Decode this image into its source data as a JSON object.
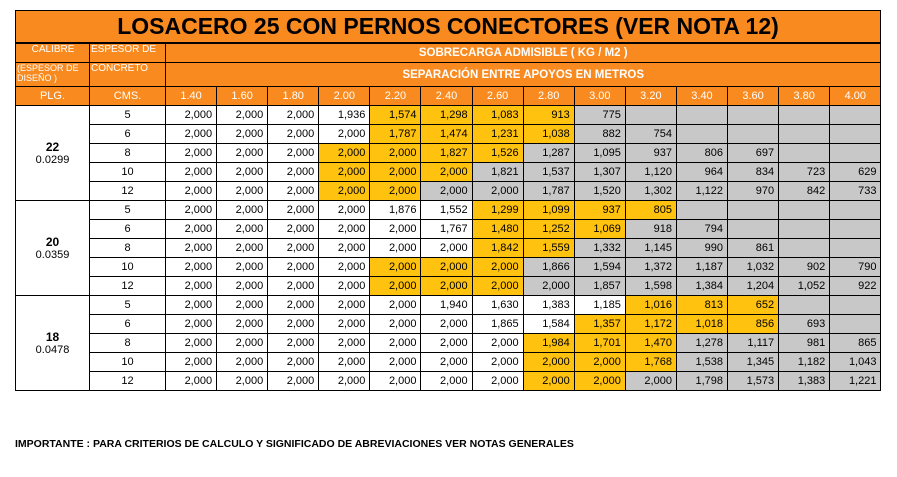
{
  "title": "LOSACERO 25  CON PERNOS CONECTORES (VER NOTA 12)",
  "header": {
    "calibre": "CALIBRE",
    "espesor_diseno": "(ESPESOR   DE DISEÑO )",
    "espesor_concreto_1": "ESPESOR  DE",
    "espesor_concreto_2": "CONCRETO",
    "sobrecarga": "SOBRECARGA ADMISIBLE  ( KG / M2 )",
    "separacion": "SEPARACIÓN ENTRE APOYOS EN METROS",
    "plg": "PLG.",
    "cms": "CMS.",
    "spans": [
      "1.40",
      "1.60",
      "1.80",
      "2.00",
      "2.20",
      "2.40",
      "2.60",
      "2.80",
      "3.00",
      "3.20",
      "3.40",
      "3.60",
      "3.80",
      "4.00"
    ]
  },
  "groups": [
    {
      "gauge": "22",
      "thickness": "0.0299",
      "rows": [
        {
          "cms": "5",
          "values": [
            "2,000",
            "2,000",
            "2,000",
            "1,936",
            "1,574",
            "1,298",
            "1,083",
            "913",
            "775",
            "",
            "",
            "",
            "",
            ""
          ],
          "fill": "wwwwyyyysssss s"
        },
        {
          "cms": "6",
          "values": [
            "2,000",
            "2,000",
            "2,000",
            "2,000",
            "1,787",
            "1,474",
            "1,231",
            "1,038",
            "882",
            "754",
            "",
            "",
            "",
            ""
          ]
        },
        {
          "cms": "8",
          "values": [
            "2,000",
            "2,000",
            "2,000",
            "2,000",
            "2,000",
            "1,827",
            "1,526",
            "1,287",
            "1,095",
            "937",
            "806",
            "697",
            "",
            ""
          ]
        },
        {
          "cms": "10",
          "values": [
            "2,000",
            "2,000",
            "2,000",
            "2,000",
            "2,000",
            "2,000",
            "1,821",
            "1,537",
            "1,307",
            "1,120",
            "964",
            "834",
            "723",
            "629"
          ]
        },
        {
          "cms": "12",
          "values": [
            "2,000",
            "2,000",
            "2,000",
            "2,000",
            "2,000",
            "2,000",
            "2,000",
            "1,787",
            "1,520",
            "1,302",
            "1,122",
            "970",
            "842",
            "733"
          ]
        }
      ]
    },
    {
      "gauge": "20",
      "thickness": "0.0359",
      "rows": [
        {
          "cms": "5",
          "values": [
            "2,000",
            "2,000",
            "2,000",
            "2,000",
            "1,876",
            "1,552",
            "1,299",
            "1,099",
            "937",
            "805",
            "",
            "",
            "",
            ""
          ]
        },
        {
          "cms": "6",
          "values": [
            "2,000",
            "2,000",
            "2,000",
            "2,000",
            "2,000",
            "1,767",
            "1,480",
            "1,252",
            "1,069",
            "918",
            "794",
            "",
            "",
            ""
          ]
        },
        {
          "cms": "8",
          "values": [
            "2,000",
            "2,000",
            "2,000",
            "2,000",
            "2,000",
            "2,000",
            "1,842",
            "1,559",
            "1,332",
            "1,145",
            "990",
            "861",
            "",
            ""
          ]
        },
        {
          "cms": "10",
          "values": [
            "2,000",
            "2,000",
            "2,000",
            "2,000",
            "2,000",
            "2,000",
            "2,000",
            "1,866",
            "1,594",
            "1,372",
            "1,187",
            "1,032",
            "902",
            "790"
          ]
        },
        {
          "cms": "12",
          "values": [
            "2,000",
            "2,000",
            "2,000",
            "2,000",
            "2,000",
            "2,000",
            "2,000",
            "2,000",
            "1,857",
            "1,598",
            "1,384",
            "1,204",
            "1,052",
            "922"
          ]
        }
      ]
    },
    {
      "gauge": "18",
      "thickness": "0.0478",
      "rows": [
        {
          "cms": "5",
          "values": [
            "2,000",
            "2,000",
            "2,000",
            "2,000",
            "2,000",
            "1,940",
            "1,630",
            "1,383",
            "1,185",
            "1,016",
            "813",
            "652",
            "",
            ""
          ]
        },
        {
          "cms": "6",
          "values": [
            "2,000",
            "2,000",
            "2,000",
            "2,000",
            "2,000",
            "2,000",
            "1,865",
            "1,584",
            "1,357",
            "1,172",
            "1,018",
            "856",
            "693",
            ""
          ]
        },
        {
          "cms": "8",
          "values": [
            "2,000",
            "2,000",
            "2,000",
            "2,000",
            "2,000",
            "2,000",
            "2,000",
            "1,984",
            "1,701",
            "1,470",
            "1,278",
            "1,117",
            "981",
            "865"
          ]
        },
        {
          "cms": "10",
          "values": [
            "2,000",
            "2,000",
            "2,000",
            "2,000",
            "2,000",
            "2,000",
            "2,000",
            "2,000",
            "2,000",
            "1,768",
            "1,538",
            "1,345",
            "1,182",
            "1,043"
          ]
        },
        {
          "cms": "12",
          "values": [
            "2,000",
            "2,000",
            "2,000",
            "2,000",
            "2,000",
            "2,000",
            "2,000",
            "2,000",
            "2,000",
            "2,000",
            "1,798",
            "1,573",
            "1,383",
            "1,221"
          ]
        }
      ]
    }
  ],
  "cell_fills": [
    [
      "wwwwyyyyssssss",
      "wwwwyyyyssssss",
      "wwwyyyyssssss s",
      "wwwyyyssssssss",
      "wwwyysssssssss"
    ],
    [
      "wwwwwwyyysssss",
      "wwwwwyyyssssss",
      "wwwwwyysssssss",
      "wwwwyyysssssss",
      "wwwwyyysssssss"
    ],
    [
      "wwwwwwwwwyyyys",
      "wwwwwwwwyyyyss",
      "wwwwwwwyyysssss",
      "wwwwwwwyyysssss",
      "wwwwwwwwyysssss"
    ]
  ],
  "colors": {
    "header_orange": "#f98a1f",
    "highlight_yellow": "#ffc20e",
    "shade_gray": "#c8c8c8"
  },
  "footer": "IMPORTANTE : PARA CRITERIOS DE CALCULO Y SIGNIFICADO DE ABREVIACIONES VER NOTAS GENERALES"
}
